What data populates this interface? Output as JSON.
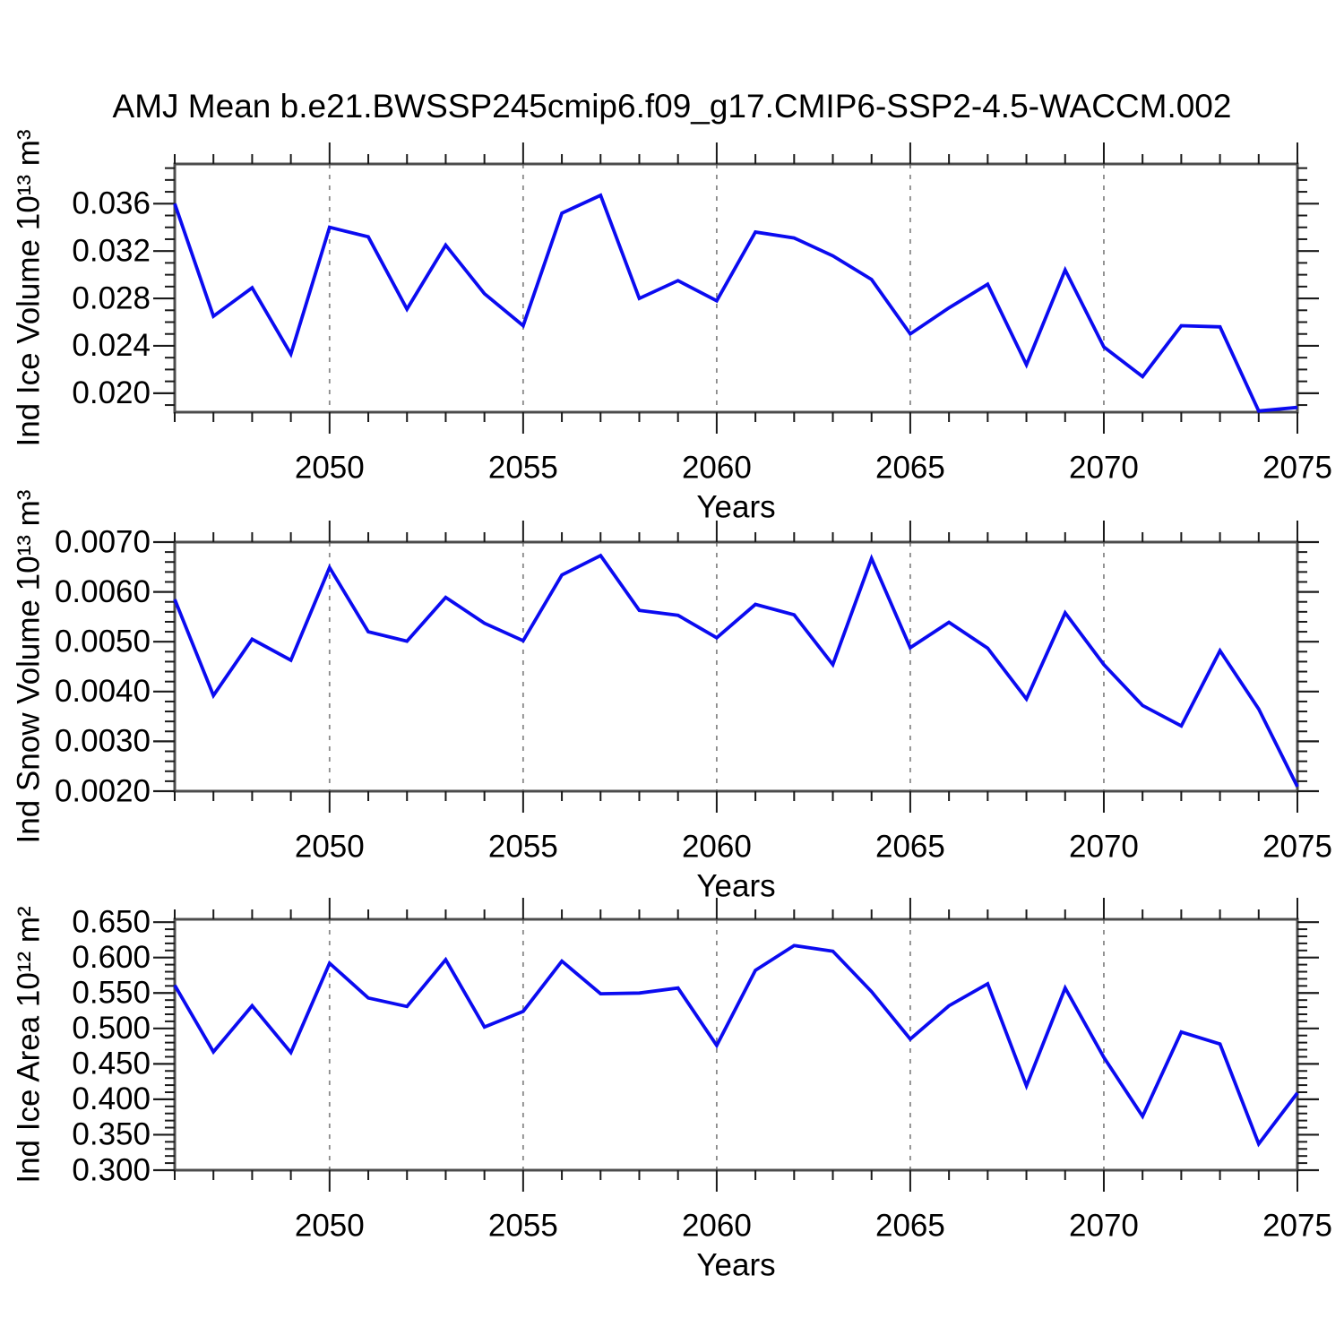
{
  "title": "AMJ Mean b.e21.BWSSP245cmip6.f09_g17.CMIP6-SSP2-4.5-WACCM.002",
  "colors": {
    "line": "#0b0bf0",
    "grid": "#8a8a8a",
    "frame": "#4c4c4c",
    "tick": "#1a1a1a",
    "text": "#000000"
  },
  "chart_data": [
    {
      "type": "line",
      "name": "ice-volume",
      "ylabel": "Ind Ice Volume 10¹³ m³",
      "xlabel": "Years",
      "x": [
        2046,
        2047,
        2048,
        2049,
        2050,
        2051,
        2052,
        2053,
        2054,
        2055,
        2056,
        2057,
        2058,
        2059,
        2060,
        2061,
        2062,
        2063,
        2064,
        2065,
        2066,
        2067,
        2068,
        2069,
        2070,
        2071,
        2072,
        2073,
        2074,
        2075
      ],
      "values": [
        0.036,
        0.0265,
        0.0289,
        0.0233,
        0.034,
        0.0332,
        0.0271,
        0.0325,
        0.0284,
        0.0257,
        0.0352,
        0.0367,
        0.028,
        0.0295,
        0.0278,
        0.0336,
        0.0331,
        0.0316,
        0.0296,
        0.025,
        0.0272,
        0.0292,
        0.0224,
        0.0304,
        0.0239,
        0.0214,
        0.0257,
        0.0256,
        0.0185,
        0.0188
      ],
      "xlim": [
        2046,
        2075
      ],
      "ylim": [
        0.0184,
        0.03935
      ],
      "xticks": [
        2050,
        2055,
        2060,
        2065,
        2070,
        2075
      ],
      "xtick_labels": [
        "2050",
        "2055",
        "2060",
        "2065",
        "2070",
        "2075"
      ],
      "xminor_step": 1,
      "grid_x": [
        2050,
        2055,
        2060,
        2065,
        2070
      ],
      "yticks": [
        0.02,
        0.024,
        0.028,
        0.032,
        0.036
      ],
      "ytick_labels": [
        "0.020",
        "0.024",
        "0.028",
        "0.032",
        "0.036"
      ],
      "yminor_step": 0.001,
      "grid": "x-dashed",
      "legend": "none"
    },
    {
      "type": "line",
      "name": "snow-volume",
      "ylabel": "Ind Snow Volume 10¹³ m³",
      "xlabel": "Years",
      "x": [
        2046,
        2047,
        2048,
        2049,
        2050,
        2051,
        2052,
        2053,
        2054,
        2055,
        2056,
        2057,
        2058,
        2059,
        2060,
        2061,
        2062,
        2063,
        2064,
        2065,
        2066,
        2067,
        2068,
        2069,
        2070,
        2071,
        2072,
        2073,
        2074,
        2075
      ],
      "values": [
        0.00585,
        0.00392,
        0.00505,
        0.00463,
        0.00649,
        0.0052,
        0.00501,
        0.00589,
        0.00537,
        0.00502,
        0.00634,
        0.00673,
        0.00563,
        0.00553,
        0.00508,
        0.00575,
        0.00554,
        0.00454,
        0.00667,
        0.00488,
        0.00539,
        0.00487,
        0.00385,
        0.00558,
        0.00454,
        0.00372,
        0.00331,
        0.00482,
        0.00365,
        0.00209
      ],
      "xlim": [
        2046,
        2075
      ],
      "ylim": [
        0.002,
        0.007
      ],
      "xticks": [
        2050,
        2055,
        2060,
        2065,
        2070,
        2075
      ],
      "xtick_labels": [
        "2050",
        "2055",
        "2060",
        "2065",
        "2070",
        "2075"
      ],
      "xminor_step": 1,
      "grid_x": [
        2050,
        2055,
        2060,
        2065,
        2070
      ],
      "yticks": [
        0.002,
        0.003,
        0.004,
        0.005,
        0.006,
        0.007
      ],
      "ytick_labels": [
        "0.0020",
        "0.0030",
        "0.0040",
        "0.0050",
        "0.0060",
        "0.0070"
      ],
      "yminor_step": 0.0002,
      "grid": "x-dashed",
      "legend": "none"
    },
    {
      "type": "line",
      "name": "ice-area",
      "ylabel": "Ind Ice Area 10¹² m²",
      "xlabel": "Years",
      "x": [
        2046,
        2047,
        2048,
        2049,
        2050,
        2051,
        2052,
        2053,
        2054,
        2055,
        2056,
        2057,
        2058,
        2059,
        2060,
        2061,
        2062,
        2063,
        2064,
        2065,
        2066,
        2067,
        2068,
        2069,
        2070,
        2071,
        2072,
        2073,
        2074,
        2075
      ],
      "values": [
        0.561,
        0.467,
        0.532,
        0.466,
        0.592,
        0.543,
        0.531,
        0.597,
        0.502,
        0.524,
        0.595,
        0.549,
        0.55,
        0.557,
        0.476,
        0.582,
        0.617,
        0.609,
        0.552,
        0.485,
        0.532,
        0.563,
        0.419,
        0.557,
        0.459,
        0.376,
        0.495,
        0.478,
        0.337,
        0.409
      ],
      "xlim": [
        2046,
        2075
      ],
      "ylim": [
        0.3,
        0.654
      ],
      "xticks": [
        2050,
        2055,
        2060,
        2065,
        2070,
        2075
      ],
      "xtick_labels": [
        "2050",
        "2055",
        "2060",
        "2065",
        "2070",
        "2075"
      ],
      "xminor_step": 1,
      "grid_x": [
        2050,
        2055,
        2060,
        2065,
        2070
      ],
      "yticks": [
        0.3,
        0.35,
        0.4,
        0.45,
        0.5,
        0.55,
        0.6,
        0.65
      ],
      "ytick_labels": [
        "0.300",
        "0.350",
        "0.400",
        "0.450",
        "0.500",
        "0.550",
        "0.600",
        "0.650"
      ],
      "yminor_step": 0.01,
      "grid": "x-dashed",
      "legend": "none"
    }
  ]
}
